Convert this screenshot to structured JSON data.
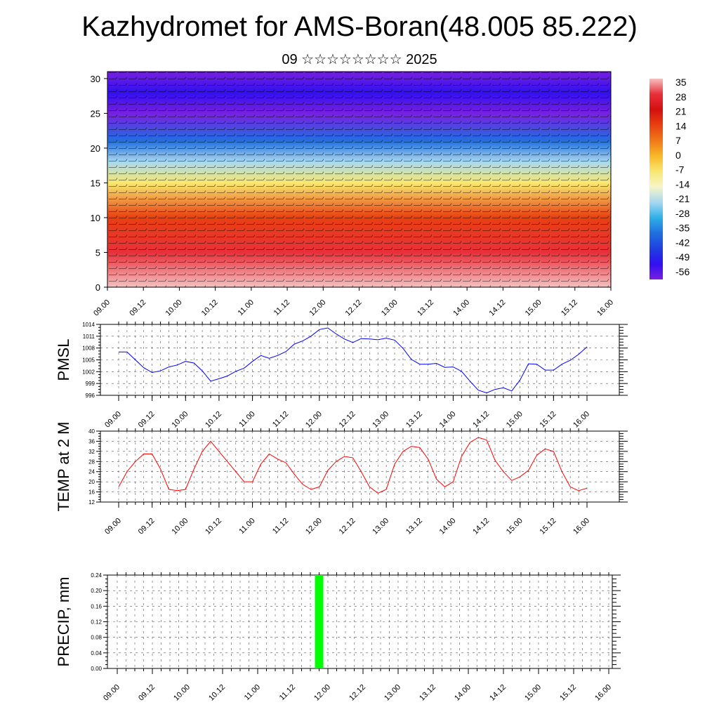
{
  "header": {
    "title": "Kazhydromet for AMS-Boran(48.005 85.222)",
    "subtitle": "09 ☆☆☆☆☆☆☆☆ 2025"
  },
  "time_labels": [
    "09.00",
    "09.12",
    "10.00",
    "10.12",
    "11.00",
    "11.12",
    "12.00",
    "12.12",
    "13.00",
    "13.12",
    "14.00",
    "14.12",
    "15.00",
    "15.12",
    "16.00"
  ],
  "chart_data": [
    {
      "type": "heatmap",
      "title": "",
      "xlabel": "",
      "ylabel": "",
      "x_ticks": [
        "09.00",
        "09.12",
        "10.00",
        "10.12",
        "11.00",
        "11.12",
        "12.00",
        "12.12",
        "13.00",
        "13.12",
        "14.00",
        "14.12",
        "15.00",
        "15.12",
        "16.00"
      ],
      "ylim": [
        0,
        31
      ],
      "y_ticks": [
        0,
        5,
        10,
        15,
        20,
        25,
        30
      ],
      "colorbar": {
        "labels": [
          35,
          28,
          21,
          14,
          7,
          0,
          -7,
          -14,
          -21,
          -28,
          -35,
          -42,
          -49,
          -56
        ],
        "colors": [
          "#f5c0c0",
          "#e8303a",
          "#d41010",
          "#e84010",
          "#f07818",
          "#f8b828",
          "#f8e870",
          "#f8f4c8",
          "#a8d8f0",
          "#30b0e8",
          "#2070e0",
          "#2040e0",
          "#3010f0",
          "#7820e0"
        ]
      },
      "temperature_by_level": [
        {
          "level": 0,
          "value": 32
        },
        {
          "level": 5,
          "value": 25
        },
        {
          "level": 10,
          "value": 12
        },
        {
          "level": 15,
          "value": -5
        },
        {
          "level": 18,
          "value": -18
        },
        {
          "level": 21,
          "value": -32
        },
        {
          "level": 25,
          "value": -55
        },
        {
          "level": 28,
          "value": -50
        },
        {
          "level": 31,
          "value": -60
        }
      ]
    },
    {
      "type": "line",
      "ylabel": "PMSL",
      "ylim": [
        996,
        1014
      ],
      "y_ticks": [
        996,
        999,
        1002,
        1005,
        1008,
        1011,
        1014
      ],
      "series": [
        {
          "color": "#0000ff",
          "values": [
            1007,
            1007,
            1005,
            1003,
            1001.8,
            1002.2,
            1003.2,
            1003.7,
            1004.6,
            1004.2,
            1002.2,
            999.6,
            1000.2,
            1000.9,
            1002.1,
            1002.9,
            1004.6,
            1006.1,
            1005.4,
            1006.1,
            1007.1,
            1009,
            1009.8,
            1011,
            1012.7,
            1013.1,
            1011.6,
            1010.3,
            1009.4,
            1010.4,
            1010.3,
            1010.1,
            1010.5,
            1010,
            1007.9,
            1005.1,
            1003.9,
            1003.9,
            1004.1,
            1003.1,
            1003.2,
            1002.1,
            999.6,
            997.3,
            996.6,
            997.5,
            997.9,
            997.1,
            999.9,
            1004,
            1003.9,
            1002.4,
            1002.4,
            1003.9,
            1004.9,
            1006.4,
            1008.3
          ]
        }
      ]
    },
    {
      "type": "line",
      "ylabel": "TEMP at 2 M",
      "ylim": [
        12,
        40
      ],
      "y_ticks": [
        12,
        16,
        20,
        24,
        28,
        32,
        36,
        40
      ],
      "series": [
        {
          "color": "#ff0000",
          "values": [
            18,
            24,
            28,
            31,
            31,
            25,
            17,
            16.5,
            17,
            25,
            32,
            36,
            32,
            28,
            24,
            20,
            20,
            27,
            31,
            29,
            27.5,
            23,
            19,
            17,
            18,
            24.5,
            28,
            30,
            29.5,
            24,
            18,
            15.5,
            17,
            27,
            32,
            34,
            33.5,
            29,
            21,
            18,
            20,
            30,
            35.5,
            37.5,
            36.5,
            28.5,
            24,
            20.5,
            22,
            24.5,
            30.5,
            33,
            32,
            24,
            18,
            16.5,
            17.5
          ]
        }
      ]
    },
    {
      "type": "bar",
      "ylabel": "PRECIP, mm",
      "ylim": [
        0,
        0.24
      ],
      "y_ticks": [
        "0.00",
        "0.04",
        "0.08",
        "0.12",
        "0.16",
        "0.20",
        "0.24"
      ],
      "bar_color": "#00ff00",
      "bars": [
        {
          "x": "11.21",
          "value": 0.24
        }
      ]
    }
  ]
}
